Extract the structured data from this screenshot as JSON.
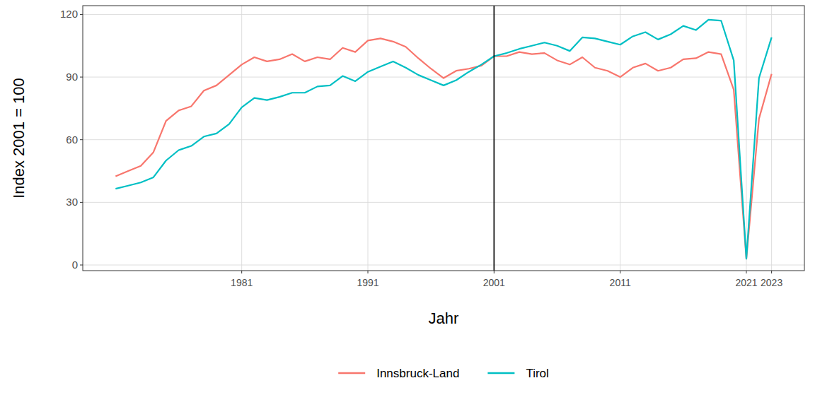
{
  "chart_data": {
    "type": "line",
    "x_label": "Jahr",
    "y_label": "Index 2001 = 100",
    "x": [
      1971,
      1972,
      1973,
      1974,
      1975,
      1976,
      1977,
      1978,
      1979,
      1980,
      1981,
      1982,
      1983,
      1984,
      1985,
      1986,
      1987,
      1988,
      1989,
      1990,
      1991,
      1992,
      1993,
      1994,
      1995,
      1996,
      1997,
      1998,
      1999,
      2000,
      2001,
      2002,
      2003,
      2004,
      2005,
      2006,
      2007,
      2008,
      2009,
      2010,
      2011,
      2012,
      2013,
      2014,
      2015,
      2016,
      2017,
      2018,
      2019,
      2020,
      2021,
      2022,
      2023
    ],
    "series": [
      {
        "name": "Innsbruck-Land",
        "color": "#F8766D",
        "values": [
          42.5,
          45,
          47.5,
          54,
          69,
          74,
          76,
          83.5,
          86,
          91,
          96,
          99.5,
          97.5,
          98.5,
          101,
          97.5,
          99.5,
          98.5,
          104,
          102,
          107.5,
          108.5,
          107,
          104.5,
          99,
          94,
          89.5,
          93,
          94,
          95.5,
          100,
          100,
          102,
          101,
          101.5,
          98,
          96,
          99.5,
          94.5,
          93,
          90,
          94.5,
          96.5,
          93,
          94.5,
          98.5,
          99,
          102,
          101,
          84,
          3,
          70,
          91.5
        ]
      },
      {
        "name": "Tirol",
        "color": "#00BFC4",
        "values": [
          36.5,
          38,
          39.5,
          42,
          50,
          55,
          57,
          61.5,
          63,
          67.5,
          75.5,
          80,
          79,
          80.5,
          82.5,
          82.5,
          85.5,
          86,
          90.5,
          88,
          92.5,
          95,
          97.5,
          94.5,
          91,
          88.5,
          86,
          88.5,
          92.5,
          96,
          100,
          101.5,
          103.5,
          105,
          106.5,
          105,
          102.5,
          109,
          108.5,
          107,
          105.5,
          109.5,
          111.5,
          108,
          110.5,
          114.5,
          112.5,
          117.5,
          117,
          98,
          3,
          89.5,
          109
        ]
      }
    ],
    "xlim": [
      1968.4,
      2025.6
    ],
    "xticks": [
      1981,
      1991,
      2001,
      2011,
      2021,
      2023
    ],
    "ylim": [
      -2.7,
      124.2
    ],
    "yticks": [
      0,
      30,
      60,
      90,
      120
    ],
    "vline": 2001,
    "grid": true,
    "legend": "bottom"
  }
}
